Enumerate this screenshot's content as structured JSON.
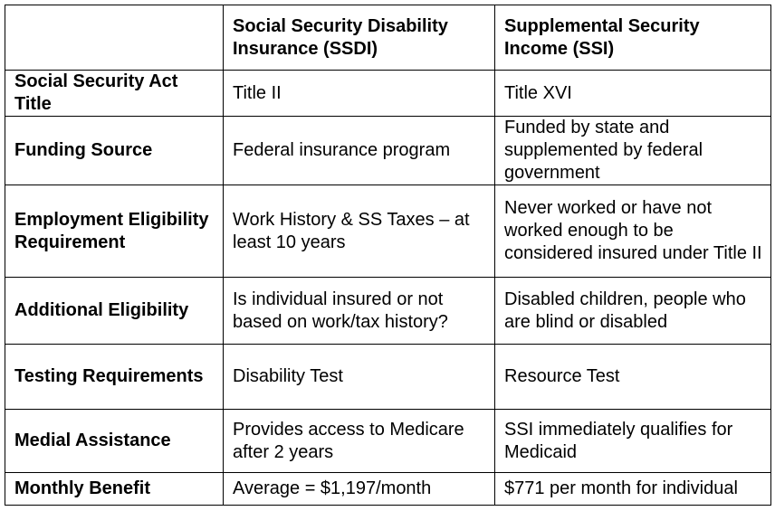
{
  "table": {
    "header": [
      "Social Security Disability Insurance (SSDI)",
      "Supplemental Security Income (SSI)"
    ],
    "rows": [
      [
        "Social Security Act Title",
        "Title II",
        "Title XVI"
      ],
      [
        "Funding Source",
        "Federal insurance program",
        "Funded by state and supplemented by federal government"
      ],
      [
        "Employment Eligibility Requirement",
        "Work History & SS Taxes – at least 10 years",
        "Never worked or have not worked enough to be considered insured under Title II"
      ],
      [
        "Additional Eligibility",
        "Is individual insured or not based on work/tax history?",
        "Disabled children, people who are blind or disabled"
      ],
      [
        "Testing Requirements",
        "Disability Test",
        "Resource Test"
      ],
      [
        "Medial Assistance",
        "Provides access to Medicare after 2 years",
        "SSI immediately qualifies for Medicaid"
      ],
      [
        "Monthly Benefit",
        "Average = $1,197/month",
        "$771 per month for individual"
      ]
    ]
  }
}
